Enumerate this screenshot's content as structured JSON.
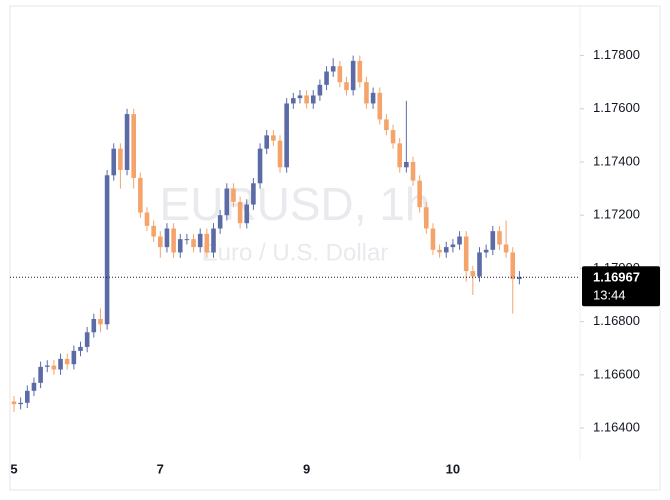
{
  "chart_data": {
    "type": "candlestick",
    "watermark": "EURUSD, 1h",
    "watermark_subtitle": "Euro / U.S. Dollar",
    "categories": [
      "5",
      null,
      null,
      null,
      null,
      null,
      null,
      null,
      null,
      null,
      null,
      null,
      null,
      null,
      null,
      null,
      null,
      null,
      null,
      null,
      null,
      null,
      "7",
      null,
      null,
      null,
      null,
      null,
      null,
      null,
      null,
      null,
      null,
      null,
      null,
      null,
      null,
      null,
      null,
      null,
      null,
      null,
      null,
      null,
      "9",
      null,
      null,
      null,
      null,
      null,
      null,
      null,
      null,
      null,
      null,
      null,
      null,
      null,
      null,
      null,
      null,
      null,
      null,
      null,
      null,
      null,
      "10",
      null,
      null,
      null,
      null,
      null,
      null,
      null,
      null,
      null,
      null
    ],
    "up_color": "#5b6ba6",
    "down_color": "#f4a46b",
    "open": [
      1.165,
      1.1649,
      1.16495,
      1.1654,
      1.1657,
      1.1663,
      1.16635,
      1.1662,
      1.1666,
      1.1664,
      1.1669,
      1.16705,
      1.1676,
      1.1681,
      1.1679,
      1.1735,
      1.1745,
      1.1737,
      1.1758,
      1.1734,
      1.1721,
      1.1716,
      1.1712,
      1.1708,
      1.1715,
      1.1706,
      1.1711,
      1.1711,
      1.1708,
      1.1713,
      1.1706,
      1.1715,
      1.172,
      1.173,
      1.1725,
      1.1717,
      1.1724,
      1.1732,
      1.1745,
      1.175,
      1.1748,
      1.1738,
      1.1762,
      1.1764,
      1.1765,
      1.1762,
      1.1765,
      1.1769,
      1.1774,
      1.1776,
      1.177,
      1.1767,
      1.1778,
      1.177,
      1.1762,
      1.1766,
      1.1756,
      1.1752,
      1.1747,
      1.1738,
      1.174,
      1.1733,
      1.1723,
      1.1715,
      1.1707,
      1.1706,
      1.1708,
      1.1709,
      1.1712,
      1.1699,
      1.1697,
      1.1706,
      1.1707,
      1.1714,
      1.1709,
      1.1706,
      1.1696
    ],
    "high": [
      1.1652,
      1.16515,
      1.1656,
      1.1659,
      1.1665,
      1.16655,
      1.16655,
      1.1668,
      1.1668,
      1.1671,
      1.16725,
      1.1678,
      1.1683,
      1.1685,
      1.1737,
      1.1747,
      1.1747,
      1.176,
      1.176,
      1.1736,
      1.1723,
      1.1718,
      1.1714,
      1.1717,
      1.1717,
      1.1713,
      1.1713,
      1.1713,
      1.1715,
      1.1715,
      1.1717,
      1.1722,
      1.1732,
      1.1732,
      1.1727,
      1.1726,
      1.1734,
      1.1747,
      1.1752,
      1.1752,
      1.175,
      1.1764,
      1.1766,
      1.1767,
      1.1767,
      1.1767,
      1.1771,
      1.1776,
      1.1779,
      1.1778,
      1.1772,
      1.178,
      1.178,
      1.1772,
      1.1768,
      1.1768,
      1.1758,
      1.1754,
      1.1749,
      1.1763,
      1.1742,
      1.1735,
      1.1725,
      1.1717,
      1.1709,
      1.171,
      1.1711,
      1.1714,
      1.1714,
      1.1701,
      1.1708,
      1.1709,
      1.1716,
      1.1716,
      1.1718,
      1.1708,
      1.1699
    ],
    "low": [
      1.1646,
      1.1647,
      1.16475,
      1.1652,
      1.1655,
      1.1661,
      1.166,
      1.166,
      1.1662,
      1.1662,
      1.1667,
      1.16685,
      1.1674,
      1.1676,
      1.1677,
      1.1733,
      1.173,
      1.1735,
      1.173,
      1.1719,
      1.1714,
      1.171,
      1.1704,
      1.1706,
      1.1704,
      1.1704,
      1.1709,
      1.1706,
      1.1706,
      1.1704,
      1.1704,
      1.1713,
      1.1718,
      1.1723,
      1.1715,
      1.1715,
      1.1722,
      1.173,
      1.1743,
      1.1746,
      1.1736,
      1.1736,
      1.176,
      1.1762,
      1.176,
      1.176,
      1.1763,
      1.1767,
      1.1772,
      1.1768,
      1.1765,
      1.1765,
      1.1768,
      1.176,
      1.176,
      1.1754,
      1.175,
      1.1745,
      1.1736,
      1.1736,
      1.1731,
      1.1721,
      1.1713,
      1.1705,
      1.1704,
      1.1704,
      1.1706,
      1.1707,
      1.1695,
      1.169,
      1.1695,
      1.1704,
      1.1705,
      1.1707,
      1.1704,
      1.1683,
      1.1694
    ],
    "close": [
      1.1649,
      1.16495,
      1.1654,
      1.1657,
      1.1663,
      1.16635,
      1.1662,
      1.1666,
      1.1664,
      1.1669,
      1.16705,
      1.1676,
      1.1681,
      1.1679,
      1.1735,
      1.1745,
      1.1737,
      1.1758,
      1.1734,
      1.1721,
      1.1716,
      1.1712,
      1.1708,
      1.1715,
      1.1706,
      1.1711,
      1.1711,
      1.1708,
      1.1713,
      1.1706,
      1.1715,
      1.172,
      1.173,
      1.1725,
      1.1717,
      1.1724,
      1.1732,
      1.1745,
      1.175,
      1.1748,
      1.1738,
      1.1762,
      1.1764,
      1.1765,
      1.1762,
      1.1765,
      1.1769,
      1.1774,
      1.1776,
      1.177,
      1.1767,
      1.1778,
      1.177,
      1.1762,
      1.1766,
      1.1756,
      1.1752,
      1.1747,
      1.1738,
      1.174,
      1.1733,
      1.1723,
      1.1715,
      1.1707,
      1.1706,
      1.1708,
      1.1709,
      1.1712,
      1.1699,
      1.1697,
      1.1706,
      1.1707,
      1.1714,
      1.1709,
      1.1706,
      1.1696,
      1.16967
    ],
    "ylim": [
      1.1628,
      1.1799
    ],
    "yticks": [
      {
        "value": 1.164,
        "label": "1.16400"
      },
      {
        "value": 1.166,
        "label": "1.16600"
      },
      {
        "value": 1.168,
        "label": "1.16800"
      },
      {
        "value": 1.17,
        "label": "1.17000"
      },
      {
        "value": 1.172,
        "label": "1.17200"
      },
      {
        "value": 1.174,
        "label": "1.17400"
      },
      {
        "value": 1.176,
        "label": "1.17600"
      },
      {
        "value": 1.178,
        "label": "1.17800"
      }
    ],
    "last_price": {
      "value": 1.16967,
      "label": "1.16967"
    },
    "countdown": "13:44",
    "grid": false
  }
}
